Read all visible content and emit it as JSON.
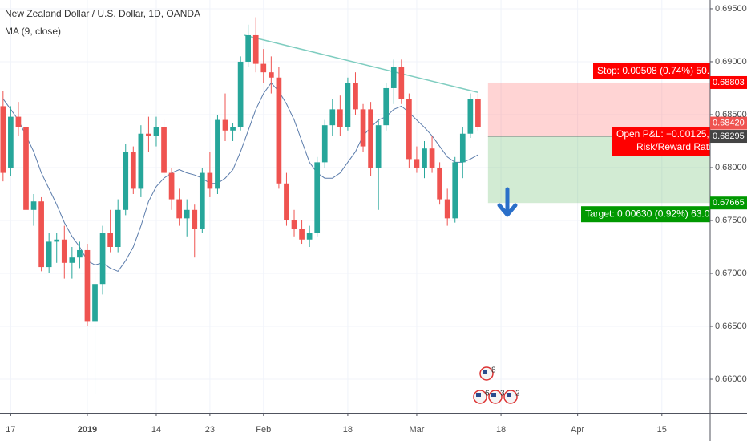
{
  "chart_data": {
    "type": "candlestick",
    "title": "New Zealand Dollar / U.S. Dollar, 1D, OANDA",
    "ylim": [
      0.65682,
      0.69583
    ],
    "yticks": [
      {
        "value": 0.695,
        "label": "0.69500"
      },
      {
        "value": 0.69,
        "label": "0.69000"
      },
      {
        "value": 0.685,
        "label": "0.68500"
      },
      {
        "value": 0.68,
        "label": "0.68000"
      },
      {
        "value": 0.675,
        "label": "0.67500"
      },
      {
        "value": 0.67,
        "label": "0.67000"
      },
      {
        "value": 0.665,
        "label": "0.66500"
      },
      {
        "value": 0.66,
        "label": "0.66000"
      }
    ],
    "xlim": [
      -0.4,
      92.3
    ],
    "xticks": [
      {
        "value": 1,
        "label": "17"
      },
      {
        "value": 11,
        "label": "2019"
      },
      {
        "value": 20,
        "label": "14"
      },
      {
        "value": 27,
        "label": "23"
      },
      {
        "value": 34,
        "label": "Feb"
      },
      {
        "value": 45,
        "label": "18"
      },
      {
        "value": 54,
        "label": "Mar"
      },
      {
        "value": 65,
        "label": "18"
      },
      {
        "value": 75,
        "label": "Apr"
      },
      {
        "value": 86,
        "label": "15"
      }
    ],
    "grid": true,
    "up_color": "#26a69a",
    "down_color": "#ef5350",
    "candles": {
      "open": [
        0.6858,
        0.68,
        0.6848,
        0.6838,
        0.676,
        0.6768,
        0.6706,
        0.673,
        0.6732,
        0.671,
        0.6715,
        0.6722,
        0.6655,
        0.669,
        0.6738,
        0.6725,
        0.676,
        0.6815,
        0.678,
        0.6832,
        0.683,
        0.6838,
        0.6795,
        0.677,
        0.6752,
        0.676,
        0.6742,
        0.6795,
        0.678,
        0.6845,
        0.6835,
        0.6838,
        0.69,
        0.6925,
        0.6898,
        0.689,
        0.6885,
        0.6785,
        0.675,
        0.6742,
        0.6732,
        0.6738,
        0.6805,
        0.684,
        0.6855,
        0.6838,
        0.688,
        0.6855,
        0.6855,
        0.68,
        0.684,
        0.6875,
        0.6895,
        0.6865,
        0.6808,
        0.68,
        0.6818,
        0.68,
        0.677,
        0.6752,
        0.6805,
        0.6832,
        0.6865
      ],
      "high": [
        0.6872,
        0.6858,
        0.6862,
        0.6845,
        0.6775,
        0.6772,
        0.6738,
        0.6738,
        0.6745,
        0.6725,
        0.673,
        0.6728,
        0.67,
        0.6745,
        0.676,
        0.677,
        0.6822,
        0.682,
        0.684,
        0.6848,
        0.6848,
        0.6845,
        0.68,
        0.678,
        0.677,
        0.6765,
        0.68,
        0.6815,
        0.685,
        0.687,
        0.6842,
        0.6905,
        0.6935,
        0.6942,
        0.6912,
        0.6905,
        0.6895,
        0.6795,
        0.676,
        0.675,
        0.6745,
        0.681,
        0.6845,
        0.6865,
        0.6868,
        0.6885,
        0.689,
        0.686,
        0.6862,
        0.6845,
        0.688,
        0.6902,
        0.6902,
        0.687,
        0.682,
        0.6825,
        0.683,
        0.6805,
        0.678,
        0.681,
        0.6838,
        0.687,
        0.687
      ],
      "low": [
        0.6787,
        0.6792,
        0.683,
        0.6755,
        0.6745,
        0.6702,
        0.67,
        0.671,
        0.6695,
        0.6695,
        0.6705,
        0.665,
        0.6586,
        0.668,
        0.672,
        0.672,
        0.6755,
        0.6775,
        0.6772,
        0.6815,
        0.682,
        0.679,
        0.676,
        0.6745,
        0.6735,
        0.6715,
        0.6738,
        0.6772,
        0.6775,
        0.6825,
        0.6825,
        0.6835,
        0.6895,
        0.689,
        0.688,
        0.687,
        0.678,
        0.6745,
        0.6735,
        0.6728,
        0.6725,
        0.6735,
        0.68,
        0.683,
        0.683,
        0.6835,
        0.685,
        0.6815,
        0.6792,
        0.676,
        0.6835,
        0.686,
        0.686,
        0.68,
        0.6795,
        0.679,
        0.6795,
        0.6765,
        0.6745,
        0.6748,
        0.679,
        0.6828,
        0.6835
      ],
      "close": [
        0.6795,
        0.6848,
        0.6838,
        0.676,
        0.6768,
        0.6706,
        0.673,
        0.6732,
        0.671,
        0.6715,
        0.6722,
        0.6655,
        0.669,
        0.6738,
        0.6725,
        0.676,
        0.6815,
        0.678,
        0.6832,
        0.683,
        0.6838,
        0.6795,
        0.677,
        0.6752,
        0.676,
        0.6742,
        0.6795,
        0.678,
        0.6845,
        0.6835,
        0.6838,
        0.69,
        0.6925,
        0.6898,
        0.689,
        0.6885,
        0.6785,
        0.675,
        0.6742,
        0.6732,
        0.6738,
        0.6805,
        0.684,
        0.6855,
        0.6838,
        0.688,
        0.6855,
        0.682,
        0.68,
        0.684,
        0.6875,
        0.6895,
        0.6865,
        0.6808,
        0.68,
        0.6818,
        0.68,
        0.677,
        0.6752,
        0.6805,
        0.6832,
        0.6865,
        0.6838
      ]
    },
    "ma": {
      "name": "MA (9, close)",
      "color": "#5b7cab",
      "values": [
        0.6865,
        0.6855,
        0.6845,
        0.683,
        0.6815,
        0.6795,
        0.678,
        0.6765,
        0.6748,
        0.6735,
        0.6725,
        0.6712,
        0.6708,
        0.671,
        0.6705,
        0.6702,
        0.6712,
        0.6725,
        0.6745,
        0.6768,
        0.6782,
        0.679,
        0.6795,
        0.6798,
        0.6795,
        0.6793,
        0.679,
        0.6785,
        0.6785,
        0.679,
        0.6798,
        0.6815,
        0.6835,
        0.6855,
        0.687,
        0.688,
        0.6872,
        0.686,
        0.6845,
        0.6825,
        0.6805,
        0.6795,
        0.679,
        0.679,
        0.6795,
        0.6805,
        0.6815,
        0.683,
        0.6838,
        0.6845,
        0.6848,
        0.6855,
        0.6858,
        0.6852,
        0.6845,
        0.6838,
        0.683,
        0.682,
        0.681,
        0.6805,
        0.6805,
        0.6808,
        0.6812
      ]
    },
    "trendline": {
      "color": "#7fcdc0",
      "x": [
        31.5,
        62
      ],
      "values": [
        0.6925,
        0.6871
      ]
    },
    "price_labels": {
      "values": [
        0.68803,
        0.6842,
        0.68295,
        0.67665
      ],
      "value_labels": [
        "0.68803",
        "0.68420",
        "0.68295",
        "0.67665"
      ],
      "colors": [
        "#ff0000",
        "#ef5350",
        "#444444",
        "#009900"
      ]
    },
    "position": {
      "start": 63.3,
      "stop_text": "Stop: 0.00508 (0.74%) 50.",
      "pnl_text": "Open P&L: −0.00125, (",
      "rr_text": "Risk/Reward Ratio",
      "target_text": "Target: 0.00630 (0.92%) 63.0"
    },
    "event_counts": [
      "8",
      "6",
      "3",
      "2"
    ]
  }
}
